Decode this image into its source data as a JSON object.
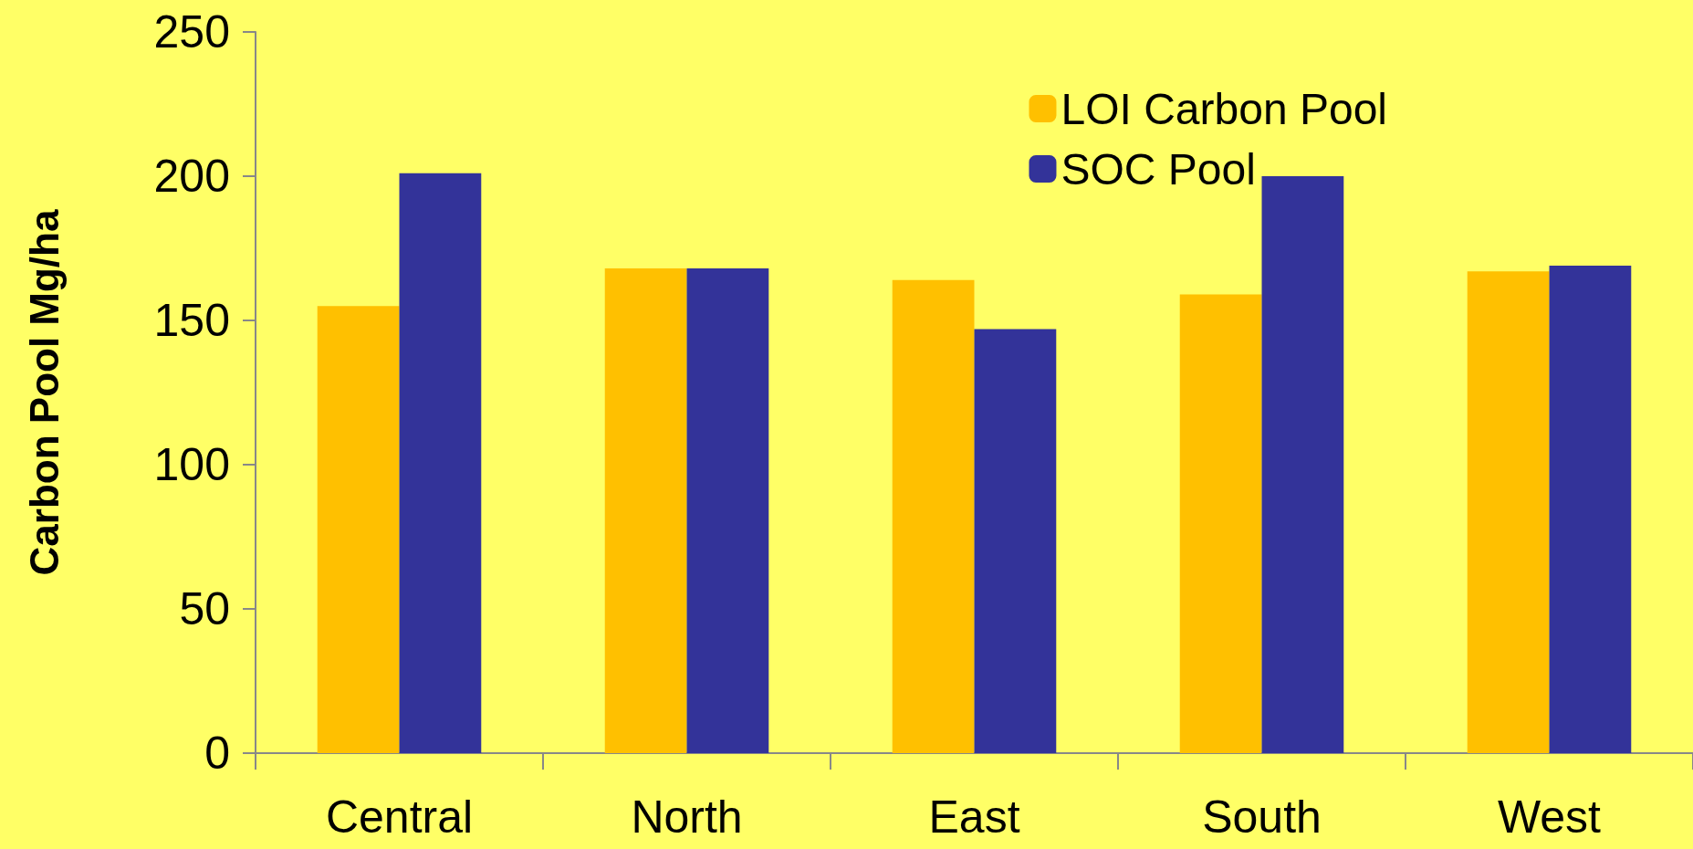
{
  "chart_data": {
    "type": "bar",
    "ylabel": "Carbon Pool Mg/ha",
    "categories": [
      "Central",
      "North",
      "East",
      "South",
      "West"
    ],
    "series": [
      {
        "name": "LOI Carbon Pool",
        "color": "#ffc000",
        "values": [
          155,
          168,
          164,
          159,
          167
        ]
      },
      {
        "name": "SOC Pool",
        "color": "#333399",
        "values": [
          201,
          168,
          147,
          200,
          169
        ]
      }
    ],
    "ylim": [
      0,
      250
    ],
    "yticks": [
      0,
      50,
      100,
      150,
      200,
      250
    ],
    "grid": false,
    "legend": "top right"
  }
}
